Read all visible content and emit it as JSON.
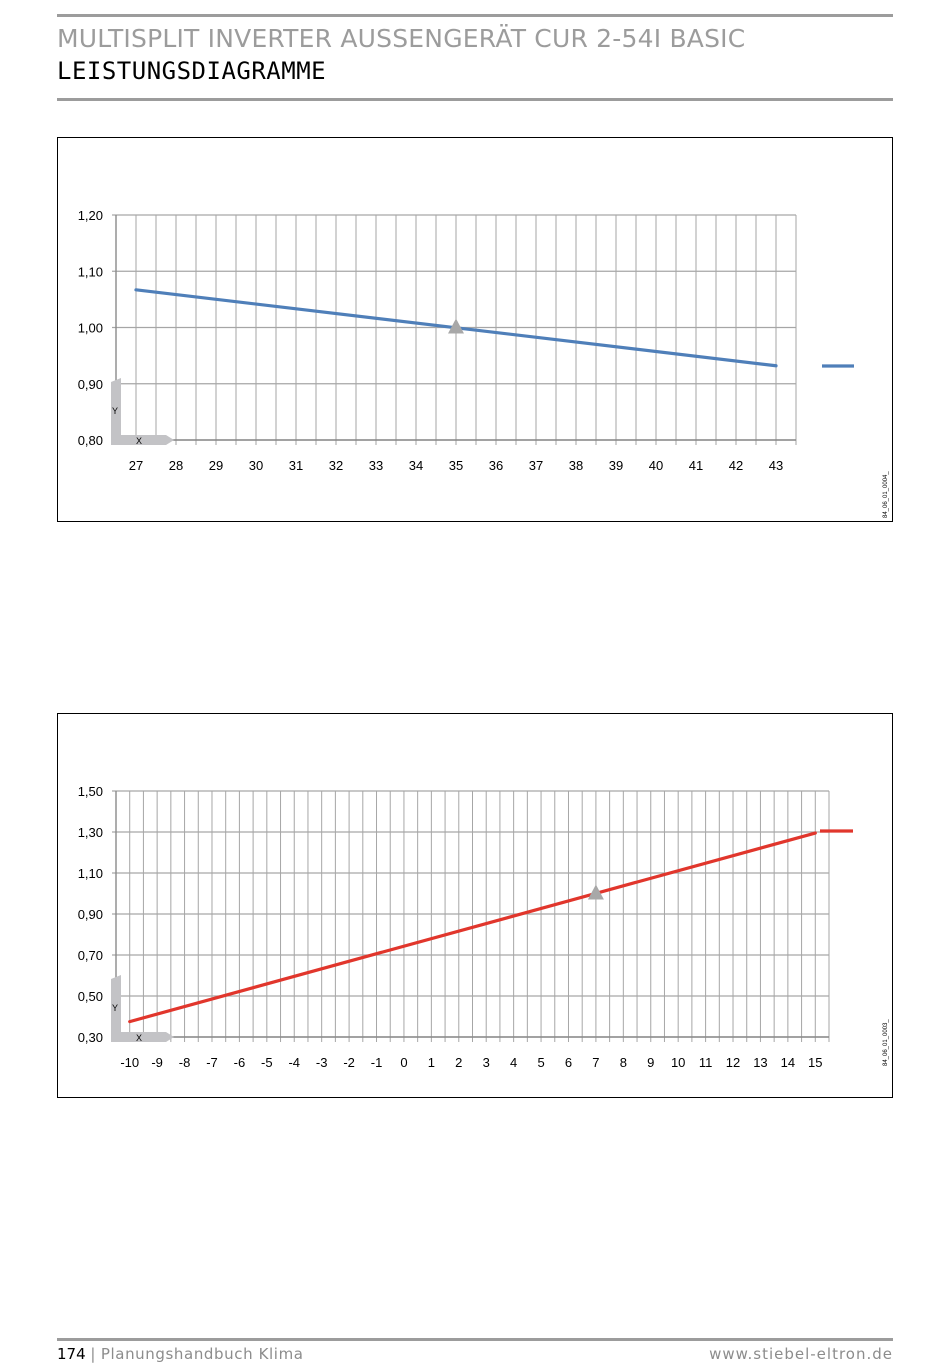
{
  "header": {
    "title": "MULTISPLIT INVERTER AUSSENGERÄT CUR 2-54I BASIC",
    "subtitle": "LEISTUNGSDIAGRAMME"
  },
  "footer": {
    "page_number": "174",
    "separator": "|",
    "book_title": "Planungshandbuch Klima",
    "website": "www.stiebel-eltron.de"
  },
  "colors": {
    "grid": "#a6a6a6",
    "axis_marker": "#c3c3c6",
    "reference_marker": "#a8a8a8",
    "rule": "#9c9c9c"
  },
  "chart_data": [
    {
      "type": "line",
      "x": [
        27,
        28,
        29,
        30,
        31,
        32,
        33,
        34,
        35,
        36,
        37,
        38,
        39,
        40,
        41,
        42,
        43
      ],
      "x_tick_labels": [
        "27",
        "28",
        "29",
        "30",
        "31",
        "32",
        "33",
        "34",
        "35",
        "36",
        "37",
        "38",
        "39",
        "40",
        "41",
        "42",
        "43"
      ],
      "y_tick_labels": [
        "1,20",
        "1,10",
        "1,00",
        "0,90",
        "0,80"
      ],
      "ylim": [
        0.8,
        1.2
      ],
      "series": [
        {
          "color": "#4f7fb9",
          "points": [
            [
              27,
              1.067
            ],
            [
              43,
              0.932
            ]
          ]
        }
      ],
      "reference_point": {
        "x": 35,
        "y": 1.0
      },
      "axis_marker": {
        "y_label": "Y",
        "x_label": "X"
      },
      "figure_code": "84_06_01_0004_",
      "grid": true,
      "legend_placement": "right"
    },
    {
      "type": "line",
      "x": [
        -10,
        -9,
        -8,
        -7,
        -6,
        -5,
        -4,
        -3,
        -2,
        -1,
        0,
        1,
        2,
        3,
        4,
        5,
        6,
        7,
        8,
        9,
        10,
        11,
        12,
        13,
        14,
        15
      ],
      "x_tick_labels": [
        "-10",
        "-9",
        "-8",
        "-7",
        "-6",
        "-5",
        "-4",
        "-3",
        "-2",
        "-1",
        "0",
        "1",
        "2",
        "3",
        "4",
        "5",
        "6",
        "7",
        "8",
        "9",
        "10",
        "11",
        "12",
        "13",
        "14",
        "15"
      ],
      "y_tick_labels": [
        "1,50",
        "1,30",
        "1,10",
        "0,90",
        "0,70",
        "0,50",
        "0,30"
      ],
      "ylim": [
        0.3,
        1.5
      ],
      "series": [
        {
          "color": "#e1362c",
          "points": [
            [
              -10,
              0.375
            ],
            [
              15,
              1.295
            ]
          ]
        }
      ],
      "reference_point": {
        "x": 7,
        "y": 1.0
      },
      "axis_marker": {
        "y_label": "Y",
        "x_label": "X"
      },
      "figure_code": "84_06_01_0003_",
      "grid": true,
      "legend_placement": "right"
    }
  ]
}
